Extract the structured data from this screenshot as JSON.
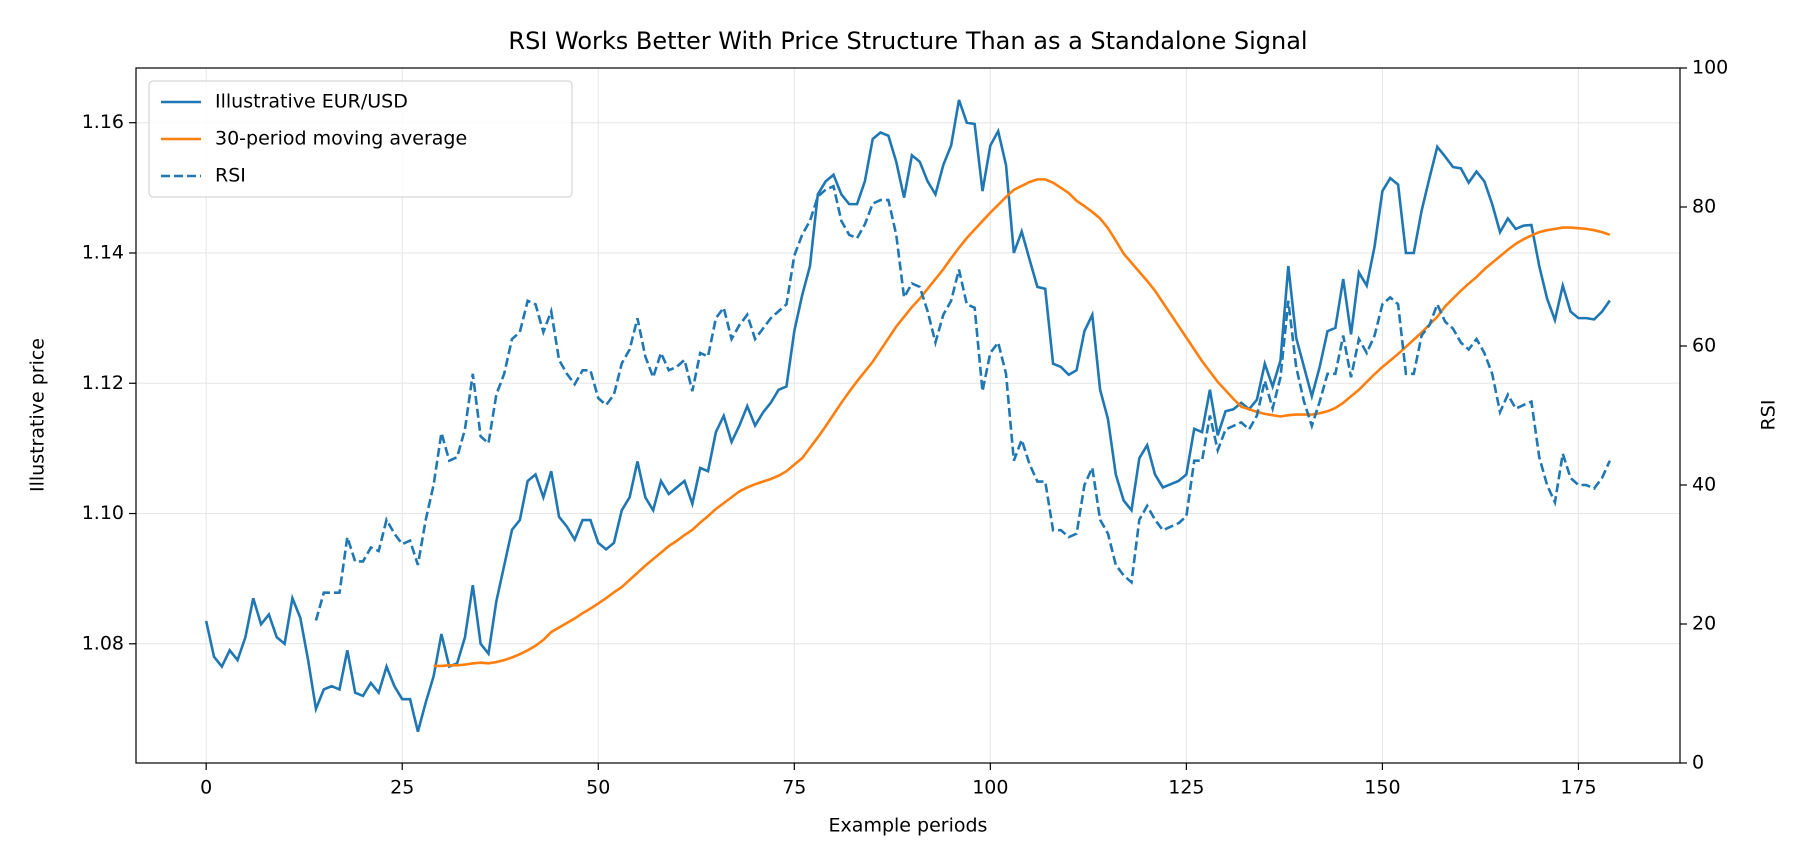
{
  "chart_data": {
    "type": "line",
    "title": "RSI Works Better With Price Structure Than as a Standalone Signal",
    "xlabel": "Example periods",
    "ylabel": "Illustrative price",
    "y2label": "RSI",
    "x": [
      0,
      1,
      2,
      3,
      4,
      5,
      6,
      7,
      8,
      9,
      10,
      11,
      12,
      13,
      14,
      15,
      16,
      17,
      18,
      19,
      20,
      21,
      22,
      23,
      24,
      25,
      26,
      27,
      28,
      29,
      30,
      31,
      32,
      33,
      34,
      35,
      36,
      37,
      38,
      39,
      40,
      41,
      42,
      43,
      44,
      45,
      46,
      47,
      48,
      49,
      50,
      51,
      52,
      53,
      54,
      55,
      56,
      57,
      58,
      59,
      60,
      61,
      62,
      63,
      64,
      65,
      66,
      67,
      68,
      69,
      70,
      71,
      72,
      73,
      74,
      75,
      76,
      77,
      78,
      79,
      80,
      81,
      82,
      83,
      84,
      85,
      86,
      87,
      88,
      89,
      90,
      91,
      92,
      93,
      94,
      95,
      96,
      97,
      98,
      99,
      100,
      101,
      102,
      103,
      104,
      105,
      106,
      107,
      108,
      109,
      110,
      111,
      112,
      113,
      114,
      115,
      116,
      117,
      118,
      119,
      120,
      121,
      122,
      123,
      124,
      125,
      126,
      127,
      128,
      129,
      130,
      131,
      132,
      133,
      134,
      135,
      136,
      137,
      138,
      139,
      140,
      141,
      142,
      143,
      144,
      145,
      146,
      147,
      148,
      149,
      150,
      151,
      152,
      153,
      154,
      155,
      156,
      157,
      158,
      159,
      160,
      161,
      162,
      163,
      164,
      165,
      166,
      167,
      168,
      169,
      170,
      171,
      172,
      173,
      174,
      175,
      176,
      177,
      178,
      179
    ],
    "series": [
      {
        "name": "Illustrative EUR/USD",
        "color": "#1f77b4",
        "linestyle": "solid",
        "values": [
          1.0835,
          1.078,
          1.0765,
          1.079,
          1.0775,
          1.081,
          1.087,
          1.083,
          1.0845,
          1.081,
          1.08,
          1.087,
          1.084,
          1.0775,
          1.07,
          1.073,
          1.0735,
          1.073,
          1.079,
          1.0725,
          1.072,
          1.074,
          1.0725,
          1.0765,
          1.0735,
          1.0715,
          1.0715,
          1.0665,
          1.071,
          1.075,
          1.0815,
          1.0765,
          1.077,
          1.081,
          1.089,
          1.08,
          1.0785,
          1.0865,
          1.092,
          1.0975,
          1.099,
          1.105,
          1.106,
          1.1025,
          1.1065,
          1.0995,
          1.098,
          1.096,
          1.099,
          1.099,
          1.0955,
          1.0945,
          1.0955,
          1.1005,
          1.1025,
          1.108,
          1.1025,
          1.1005,
          1.105,
          1.103,
          1.104,
          1.105,
          1.1015,
          1.107,
          1.1065,
          1.1125,
          1.115,
          1.111,
          1.1135,
          1.1165,
          1.1135,
          1.1155,
          1.117,
          1.119,
          1.1195,
          1.128,
          1.1335,
          1.138,
          1.149,
          1.151,
          1.152,
          1.149,
          1.1475,
          1.1475,
          1.151,
          1.1575,
          1.1585,
          1.158,
          1.154,
          1.1485,
          1.155,
          1.154,
          1.151,
          1.149,
          1.1535,
          1.1565,
          1.1635,
          1.16,
          1.1598,
          1.1495,
          1.1565,
          1.1587,
          1.1535,
          1.14,
          1.1433,
          1.139,
          1.1348,
          1.1345,
          1.123,
          1.1225,
          1.1213,
          1.122,
          1.128,
          1.1305,
          1.119,
          1.1145,
          1.106,
          1.102,
          1.1005,
          1.1085,
          1.1105,
          1.106,
          1.104,
          1.1045,
          1.105,
          1.106,
          1.113,
          1.1125,
          1.119,
          1.112,
          1.1157,
          1.116,
          1.117,
          1.116,
          1.1175,
          1.123,
          1.1195,
          1.1235,
          1.138,
          1.127,
          1.1225,
          1.118,
          1.1225,
          1.128,
          1.1285,
          1.136,
          1.1275,
          1.137,
          1.135,
          1.141,
          1.1495,
          1.1515,
          1.1505,
          1.14,
          1.14,
          1.1465,
          1.1515,
          1.1563,
          1.1548,
          1.1532,
          1.153,
          1.1508,
          1.1525,
          1.151,
          1.1475,
          1.1432,
          1.1453,
          1.1437,
          1.1442,
          1.1443,
          1.138,
          1.133,
          1.1297,
          1.135,
          1.131,
          1.13,
          1.13,
          1.1298,
          1.131,
          1.1327
        ]
      },
      {
        "name": "30-period moving average",
        "color": "#ff7f0e",
        "linestyle": "solid",
        "values": [
          null,
          null,
          null,
          null,
          null,
          null,
          null,
          null,
          null,
          null,
          null,
          null,
          null,
          null,
          null,
          null,
          null,
          null,
          null,
          null,
          null,
          null,
          null,
          null,
          null,
          null,
          null,
          null,
          null,
          1.0766,
          1.0766,
          1.0767,
          1.0767,
          1.0768,
          1.077,
          1.0771,
          1.077,
          1.0772,
          1.0775,
          1.0779,
          1.0784,
          1.079,
          1.0797,
          1.0806,
          1.0818,
          1.0825,
          1.0832,
          1.0839,
          1.0847,
          1.0854,
          1.0862,
          1.087,
          1.0879,
          1.0887,
          1.0898,
          1.0909,
          1.092,
          1.093,
          1.094,
          1.095,
          1.0958,
          1.0967,
          1.0975,
          1.0986,
          1.0996,
          1.1007,
          1.1016,
          1.1025,
          1.1034,
          1.104,
          1.1045,
          1.1049,
          1.1053,
          1.1058,
          1.1065,
          1.1075,
          1.1085,
          1.1101,
          1.1117,
          1.1134,
          1.1152,
          1.117,
          1.1187,
          1.1203,
          1.1218,
          1.1233,
          1.1251,
          1.1269,
          1.1287,
          1.1302,
          1.1317,
          1.133,
          1.1345,
          1.136,
          1.1375,
          1.1392,
          1.1408,
          1.1423,
          1.1436,
          1.1449,
          1.1462,
          1.1474,
          1.1486,
          1.1497,
          1.1503,
          1.1509,
          1.1513,
          1.1513,
          1.1508,
          1.15,
          1.1492,
          1.148,
          1.1472,
          1.1463,
          1.1453,
          1.1438,
          1.1419,
          1.1399,
          1.1385,
          1.1371,
          1.1357,
          1.1342,
          1.1324,
          1.1306,
          1.1288,
          1.127,
          1.1252,
          1.1234,
          1.1218,
          1.1202,
          1.1189,
          1.1176,
          1.1164,
          1.116,
          1.1156,
          1.1153,
          1.1151,
          1.1149,
          1.1151,
          1.1152,
          1.1152,
          1.1152,
          1.1154,
          1.1157,
          1.1162,
          1.117,
          1.118,
          1.119,
          1.1202,
          1.1214,
          1.1225,
          1.1235,
          1.1245,
          1.1256,
          1.1267,
          1.1278,
          1.129,
          1.1302,
          1.1318,
          1.133,
          1.1342,
          1.1353,
          1.1363,
          1.1375,
          1.1385,
          1.1395,
          1.1405,
          1.1414,
          1.1421,
          1.1427,
          1.1432,
          1.1435,
          1.1437,
          1.1439,
          1.1439,
          1.1438,
          1.1437,
          1.1435,
          1.1432,
          1.1428
        ]
      },
      {
        "name": "RSI",
        "color": "#1f77b4",
        "linestyle": "dashed",
        "axis": "y2",
        "values": [
          null,
          null,
          null,
          null,
          null,
          null,
          null,
          null,
          null,
          null,
          null,
          null,
          null,
          null,
          20.5,
          24.5,
          24.5,
          24.5,
          32.5,
          29,
          29,
          31,
          30.5,
          35,
          33,
          31.5,
          32,
          28.5,
          35,
          40,
          47.5,
          43.5,
          44,
          48,
          56,
          47,
          46,
          53,
          56,
          61,
          62,
          66.5,
          66,
          62,
          65,
          58,
          56,
          54.5,
          56.5,
          56.5,
          52.5,
          51.5,
          53,
          57.5,
          59.5,
          64,
          58.5,
          55.5,
          59,
          56.5,
          57,
          58,
          53.5,
          59,
          58.5,
          64,
          65.5,
          61,
          63,
          64.5,
          61,
          62.5,
          64,
          65,
          66,
          73,
          76,
          78,
          81.5,
          82.5,
          83,
          78,
          76,
          75.5,
          77.5,
          80.5,
          81,
          81,
          76,
          67,
          69,
          68.5,
          65,
          60.5,
          64.5,
          66.5,
          71,
          66,
          65.5,
          53.5,
          59,
          60.5,
          56,
          43.5,
          46.5,
          43,
          40.5,
          40.5,
          33.5,
          33.5,
          32.5,
          33,
          40,
          42.5,
          35,
          33,
          28.5,
          27,
          26,
          35,
          37,
          35,
          33.5,
          34,
          34.5,
          35.5,
          43.5,
          43.5,
          50,
          45,
          48,
          48.5,
          49,
          48,
          50,
          55,
          51,
          55.5,
          66.5,
          57,
          52,
          48.5,
          52,
          56,
          56,
          61.5,
          55.5,
          61,
          59,
          61.5,
          66,
          67,
          66,
          56,
          56,
          61.5,
          63,
          66,
          63.5,
          62.5,
          60.5,
          59.5,
          61,
          59,
          56,
          50.5,
          53,
          51,
          51.5,
          52,
          44,
          40,
          37.5,
          44.5,
          41,
          40,
          40,
          39.5,
          41,
          43.5
        ]
      }
    ],
    "xlim": [
      -8.95,
      187.95
    ],
    "xticks": [
      0,
      25,
      50,
      75,
      100,
      125,
      150,
      175
    ],
    "ylim": [
      1.0617,
      1.1684
    ],
    "yticks": [
      1.08,
      {
        "value": 1.1,
        "label": "1.10"
      },
      1.12,
      1.14,
      1.16
    ],
    "y2lim": [
      0,
      100
    ],
    "y2ticks": [
      0,
      20,
      40,
      60,
      80,
      100
    ],
    "grid": true,
    "legend": "upper left"
  }
}
